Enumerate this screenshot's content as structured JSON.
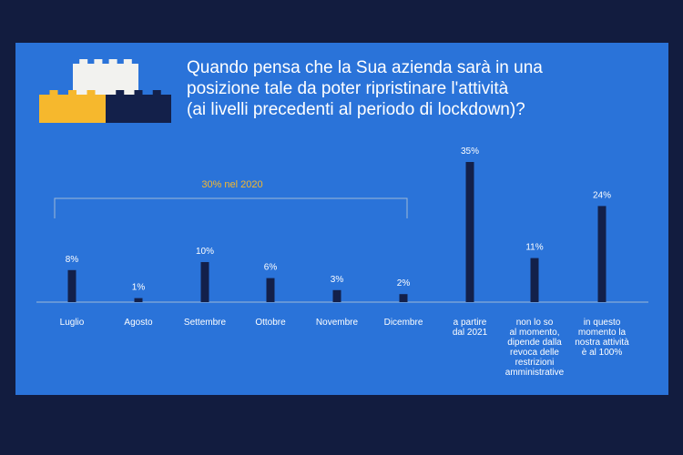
{
  "header": {
    "title_lines": [
      "Quando pensa che la Sua azienda sarà in una",
      "posizione tale da poter ripristinare l'attività",
      "(ai livelli precedenti al periodo di lockdown)?"
    ]
  },
  "annotation": {
    "text": "30% nel 2020"
  },
  "colors": {
    "background": "#121c3f",
    "panel": "#2a73d9",
    "bar": "#13204a",
    "text": "#ffffff",
    "accent": "#f5b82e",
    "brick_white": "#f2f2ef",
    "brick_yellow": "#f6b82d",
    "brick_navy": "#13204a"
  },
  "chart_data": {
    "type": "bar",
    "title": "Quando pensa che la Sua azienda sarà in una posizione tale da poter ripristinare l'attività (ai livelli precedenti al periodo di lockdown)?",
    "categories": [
      [
        "Luglio"
      ],
      [
        "Agosto"
      ],
      [
        "Settembre"
      ],
      [
        "Ottobre"
      ],
      [
        "Novembre"
      ],
      [
        "Dicembre"
      ],
      [
        "a partire",
        "dal 2021"
      ],
      [
        "non lo so",
        "al momento,",
        "dipende dalla",
        "revoca delle",
        "restrizioni",
        "amministrative"
      ],
      [
        "in questo",
        "momento la",
        "nostra attività",
        "è al 100%"
      ]
    ],
    "values": [
      8,
      1,
      10,
      6,
      3,
      2,
      35,
      11,
      24
    ],
    "value_labels": [
      "8%",
      "1%",
      "10%",
      "6%",
      "3%",
      "2%",
      "35%",
      "11%",
      "24%"
    ],
    "ylim": [
      0,
      35
    ],
    "grid": false,
    "legend": "none",
    "annotations": [
      {
        "text": "30% nel 2020",
        "spans_categories": [
          "Luglio",
          "Dicembre"
        ]
      }
    ]
  }
}
